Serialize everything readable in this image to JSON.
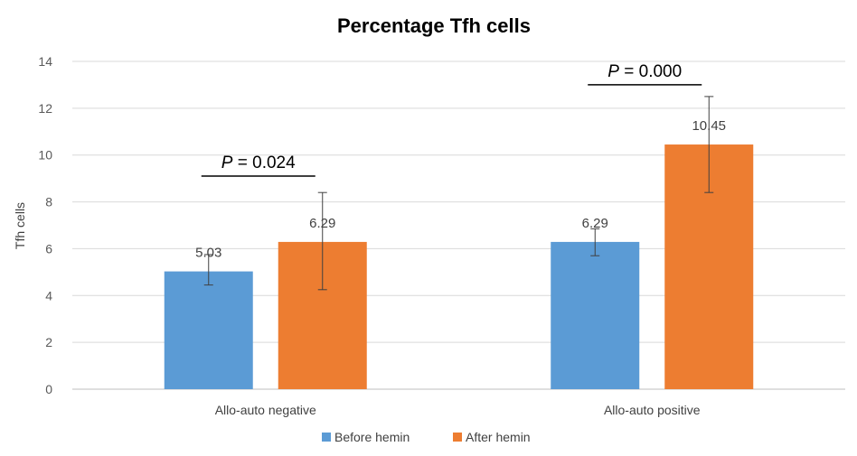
{
  "chart_data": {
    "type": "bar",
    "title": "Percentage Tfh cells",
    "xlabel": "",
    "ylabel": "Tfh cells",
    "ylim": [
      0,
      14
    ],
    "yticks": [
      0,
      2,
      4,
      6,
      8,
      10,
      12,
      14
    ],
    "grid": true,
    "legend_position": "bottom",
    "categories": [
      "Allo-auto negative",
      "Allo-auto positive"
    ],
    "series": [
      {
        "name": "Before hemin",
        "color": "#5B9BD5",
        "values": [
          5.03,
          6.29
        ],
        "value_labels": [
          "5.03",
          "6.29"
        ],
        "error_low": [
          4.45,
          5.7
        ],
        "error_high": [
          5.75,
          6.85
        ]
      },
      {
        "name": "After hemin",
        "color": "#ED7D31",
        "values": [
          6.29,
          10.45
        ],
        "value_labels": [
          "6.29",
          "10.45"
        ],
        "error_low": [
          4.25,
          8.4
        ],
        "error_high": [
          8.4,
          12.5
        ]
      }
    ],
    "annotations": [
      {
        "category_index": 0,
        "p_symbol": "P",
        "p_rest": " = 0.024",
        "line_y": 9.1
      },
      {
        "category_index": 1,
        "p_symbol": "P",
        "p_rest": " = 0.000",
        "line_y": 13.0
      }
    ]
  }
}
